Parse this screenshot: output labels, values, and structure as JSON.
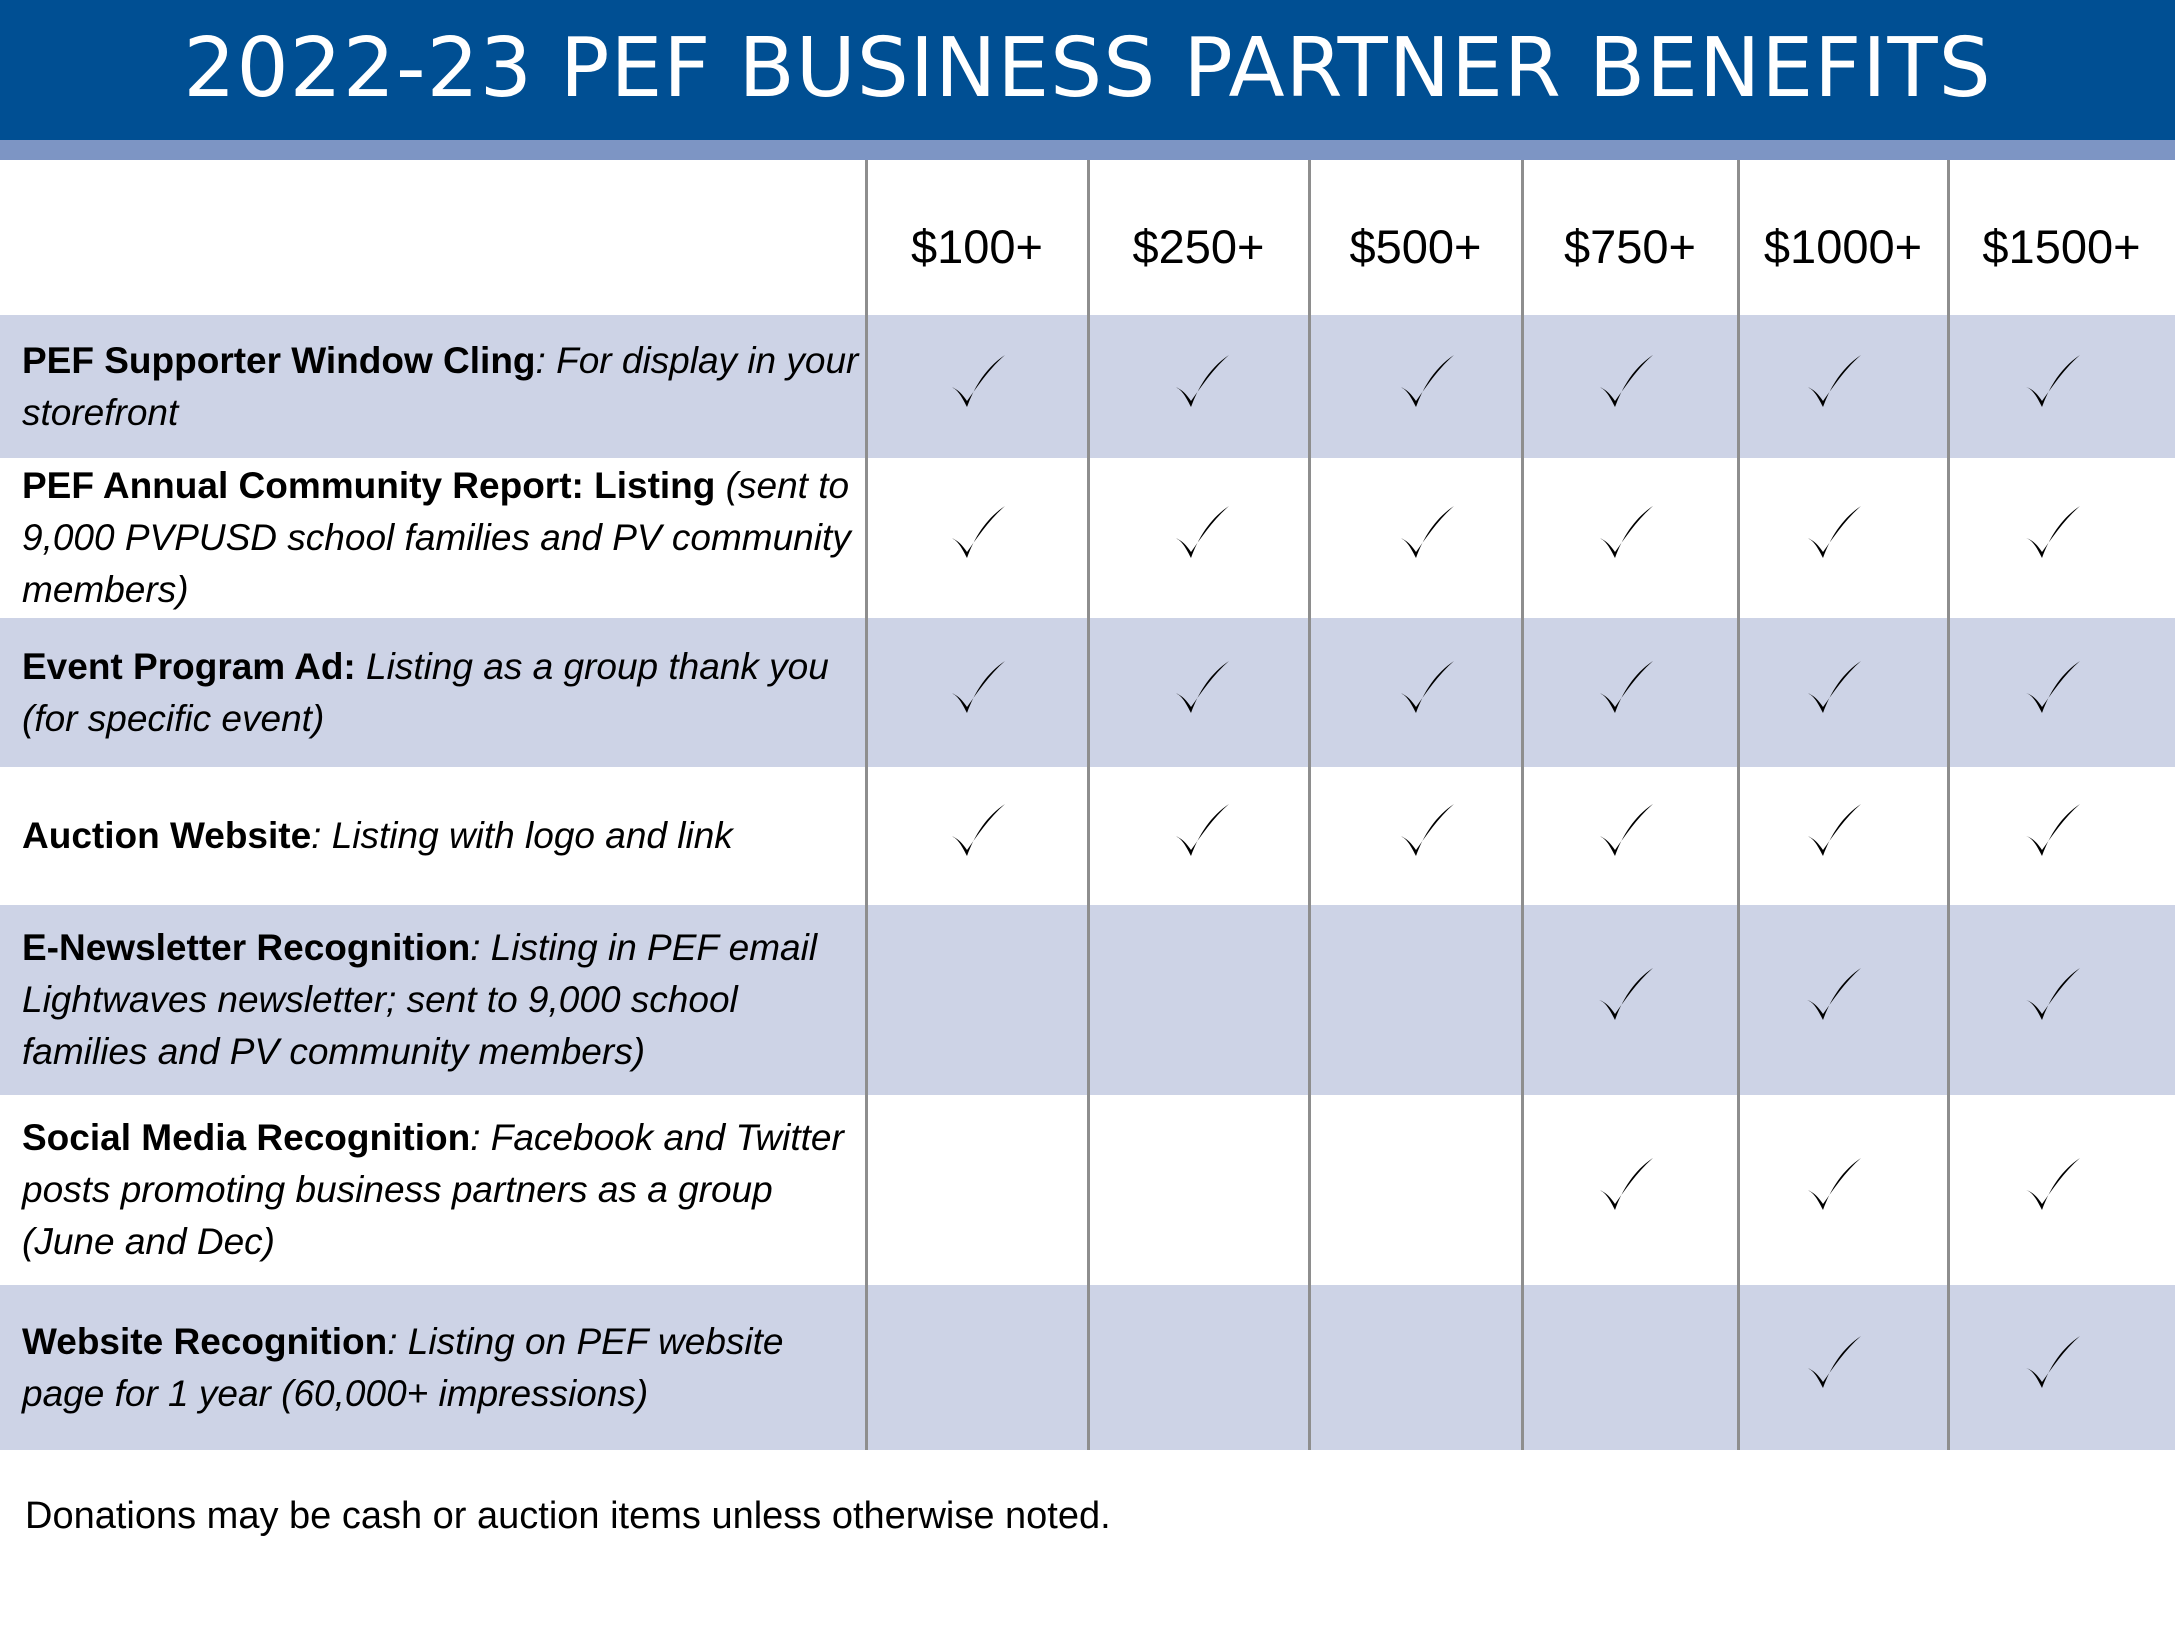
{
  "title": "2022-23 PEF BUSINESS PARTNER BENEFITS",
  "colors": {
    "header_bg": "#004f93",
    "stripe": "#7d95c4",
    "band": "#cdd3e6",
    "divider": "#8e8e8e"
  },
  "tiers": [
    "$100+",
    "$250+",
    "$500+",
    "$750+",
    "$1000+",
    "$1500+"
  ],
  "benefits": [
    {
      "name": "PEF Supporter Window Cling",
      "description": ": For display in your storefront",
      "checks": [
        true,
        true,
        true,
        true,
        true,
        true
      ]
    },
    {
      "name": "PEF Annual Community Report: Listing",
      "description": " (sent to 9,000 PVPUSD school families and PV community members)",
      "checks": [
        true,
        true,
        true,
        true,
        true,
        true
      ]
    },
    {
      "name": "Event Program Ad:",
      "description": " Listing as a group thank you (for specific event)",
      "checks": [
        true,
        true,
        true,
        true,
        true,
        true
      ]
    },
    {
      "name": "Auction Website",
      "description": ": Listing with logo and link",
      "checks": [
        true,
        true,
        true,
        true,
        true,
        true
      ]
    },
    {
      "name": "E-Newsletter Recognition",
      "description": ": Listing in PEF email Lightwaves newsletter; sent to 9,000 school families and PV community members)",
      "checks": [
        false,
        false,
        false,
        true,
        true,
        true
      ]
    },
    {
      "name": "Social Media Recognition",
      "description": ": Facebook and Twitter posts promoting business partners as a group (June and Dec)",
      "checks": [
        false,
        false,
        false,
        true,
        true,
        true
      ]
    },
    {
      "name": "Website Recognition",
      "description": ": Listing on PEF website page for 1 year (60,000+ impressions)",
      "checks": [
        false,
        false,
        false,
        false,
        true,
        true
      ]
    }
  ],
  "footnote": "Donations may be cash or auction items unless otherwise noted.",
  "check_icon": "checkmark-icon"
}
